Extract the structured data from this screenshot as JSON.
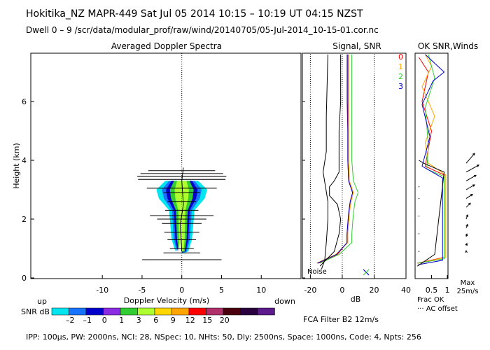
{
  "header": {
    "line1": "Hokitika_NZ  MAPR-449  Sat Jul 05 2014 10:15 – 10:19 UT 04:15 NZST",
    "line2": "Dwell  0 –  9   /scr/data/modular_prof/raw/wind/20140705/05-Jul-2014_10-15-01.cor.nc"
  },
  "footer": {
    "params": "IPP: 100µs,  PW: 2000ns,  NCI: 28,  NSpec: 10, NHts: 50,  Dly: 2500ns,  Space: 1000ns,  Code: 4,  Npts: 256",
    "filter": "FCA Filter B2 12m/s"
  },
  "colors": {
    "snr_scale": [
      "#00e5ee",
      "#1874ff",
      "#0000cd",
      "#8b2be2",
      "#32cd32",
      "#adff2f",
      "#ffd700",
      "#ffa500",
      "#ff0000",
      "#b0306a",
      "#4b0010",
      "#2b003f",
      "#5c1a8a"
    ],
    "line0": "#ff0000",
    "line1": "#ffa500",
    "line2": "#32cd32",
    "line3": "#0000cd"
  },
  "chart_data": [
    {
      "type": "heatmap",
      "title": "Averaged Doppler Spectra",
      "xlabel": "Doppler Velocity (m/s)",
      "ylabel": "Height (km)",
      "xlim": [
        -19,
        15
      ],
      "ylim": [
        0,
        7.7
      ],
      "x_ticks": [
        -10,
        -5,
        0,
        5,
        10
      ],
      "y_ticks": [
        0,
        2,
        4,
        6
      ],
      "left_note": "up",
      "right_note": "down",
      "spectrum_widths": [
        {
          "h": 0.62,
          "x1": -5,
          "x2": 5
        },
        {
          "h": 0.85,
          "x1": -2.3,
          "x2": 2.3
        },
        {
          "h": 1.0,
          "x1": -1.5,
          "x2": 1.5
        },
        {
          "h": 1.3,
          "x1": -1.8,
          "x2": 1.8
        },
        {
          "h": 1.55,
          "x1": -2.2,
          "x2": 2.2
        },
        {
          "h": 1.85,
          "x1": -2.5,
          "x2": 2.5
        },
        {
          "h": 2.0,
          "x1": -3.1,
          "x2": 3.1
        },
        {
          "h": 2.12,
          "x1": -4,
          "x2": 4
        },
        {
          "h": 2.3,
          "x1": -2.1,
          "x2": 2.1
        },
        {
          "h": 2.6,
          "x1": -1.8,
          "x2": 1.8
        },
        {
          "h": 2.9,
          "x1": -2.3,
          "x2": 2.3
        },
        {
          "h": 3.05,
          "x1": -4.4,
          "x2": 4.4
        },
        {
          "h": 3.35,
          "x1": -5.5,
          "x2": 5.5
        },
        {
          "h": 3.45,
          "x1": -5.6,
          "x2": 5.6
        },
        {
          "h": 3.55,
          "x1": -5.2,
          "x2": 5.2
        },
        {
          "h": 3.65,
          "x1": -4.2,
          "x2": 4.2
        }
      ],
      "core_profile": [
        {
          "h": 0.9,
          "half_width": 0.5
        },
        {
          "h": 1.3,
          "half_width": 0.8
        },
        {
          "h": 1.8,
          "half_width": 0.9
        },
        {
          "h": 2.3,
          "half_width": 1.0
        },
        {
          "h": 2.7,
          "half_width": 1.8
        },
        {
          "h": 3.0,
          "half_width": 2.0
        },
        {
          "h": 3.3,
          "half_width": 1.3
        }
      ],
      "mean_velocity": [
        {
          "h": 0.9,
          "v": 0.0
        },
        {
          "h": 1.8,
          "v": -0.2
        },
        {
          "h": 2.5,
          "v": 0.2
        },
        {
          "h": 3.3,
          "v": 0.0
        },
        {
          "h": 3.75,
          "v": 0.2
        }
      ]
    },
    {
      "type": "line",
      "title": "Signal, SNR",
      "xlabel": "dB",
      "xlim": [
        -25,
        40
      ],
      "ylim": [
        0,
        7.7
      ],
      "x_ticks": [
        -20,
        0,
        20,
        40
      ],
      "noise_label": "Noise",
      "series": [
        {
          "name": "0",
          "points": [
            [
              -15,
              0.5
            ],
            [
              -3,
              0.8
            ],
            [
              3,
              1.2
            ],
            [
              3,
              1.5
            ],
            [
              4,
              2.2
            ],
            [
              5,
              2.6
            ],
            [
              6.5,
              2.9
            ],
            [
              4,
              3.3
            ],
            [
              3.5,
              4.0
            ],
            [
              3.5,
              5.0
            ],
            [
              3,
              6.0
            ],
            [
              3,
              7.6
            ]
          ]
        },
        {
          "name": "1",
          "points": [
            [
              -16,
              0.5
            ],
            [
              -4,
              0.8
            ],
            [
              3.5,
              1.2
            ],
            [
              3.5,
              1.5
            ],
            [
              4.5,
              2.2
            ],
            [
              5.5,
              2.6
            ],
            [
              7,
              2.9
            ],
            [
              4.5,
              3.3
            ],
            [
              4,
              4.0
            ],
            [
              4,
              5.0
            ],
            [
              4,
              6.0
            ],
            [
              4,
              7.6
            ]
          ]
        },
        {
          "name": "2",
          "points": [
            [
              -14,
              0.5
            ],
            [
              -2,
              0.8
            ],
            [
              6,
              1.2
            ],
            [
              6,
              1.5
            ],
            [
              7,
              2.2
            ],
            [
              8,
              2.6
            ],
            [
              10,
              2.9
            ],
            [
              7,
              3.3
            ],
            [
              6,
              4.0
            ],
            [
              6,
              5.0
            ],
            [
              6,
              6.0
            ],
            [
              6,
              7.6
            ]
          ]
        },
        {
          "name": "3",
          "points": [
            [
              -15.5,
              0.5
            ],
            [
              -3.5,
              0.8
            ],
            [
              3,
              1.2
            ],
            [
              3,
              1.5
            ],
            [
              4,
              2.2
            ],
            [
              5,
              2.6
            ],
            [
              6.5,
              2.9
            ],
            [
              4,
              3.3
            ],
            [
              3.5,
              4.0
            ],
            [
              3.5,
              5.0
            ],
            [
              3.5,
              6.0
            ],
            [
              3.5,
              7.6
            ]
          ]
        },
        {
          "name": "",
          "points": [
            [
              -14,
              0.4
            ],
            [
              -5,
              0.9
            ],
            [
              -2,
              1.5
            ],
            [
              -1,
              2.0
            ],
            [
              -3,
              2.5
            ],
            [
              -8,
              2.8
            ],
            [
              -8,
              3.1
            ],
            [
              -5,
              3.3
            ],
            [
              -2,
              3.6
            ],
            [
              -2,
              4.0
            ],
            [
              -2,
              5.0
            ],
            [
              -1,
              6.0
            ],
            [
              -1,
              7.0
            ],
            [
              -1,
              7.6
            ]
          ]
        },
        {
          "name": "",
          "points": [
            [
              -13,
              0.3
            ],
            [
              -11,
              0.6
            ],
            [
              -10,
              1.2
            ],
            [
              -9,
              2.0
            ],
            [
              -9,
              2.6
            ],
            [
              -12,
              3.6
            ],
            [
              -10,
              4.3
            ],
            [
              -10,
              5.5
            ],
            [
              -9,
              7.6
            ]
          ]
        }
      ],
      "reference_lines_db": [
        -20,
        0,
        20
      ],
      "marker_db": 15
    },
    {
      "type": "line",
      "title": "OK SNR,Winds",
      "xlabel": "Frac OK",
      "x_ticks": [
        "0.5",
        "1"
      ],
      "legend": [
        "0",
        "1",
        "2",
        "3"
      ],
      "xlim": [
        0,
        1
      ],
      "ylim": [
        0,
        7.7
      ],
      "offset_label": "··· AC offset",
      "max_label": "Max",
      "max_value": "25m/s",
      "series": [
        {
          "name": "0",
          "points": [
            [
              0.05,
              0.5
            ],
            [
              0.9,
              0.7
            ],
            [
              0.9,
              3.5
            ],
            [
              0.3,
              3.8
            ],
            [
              0.5,
              5.0
            ],
            [
              0.2,
              6.0
            ],
            [
              0.4,
              7.0
            ],
            [
              0.1,
              7.5
            ]
          ]
        },
        {
          "name": "1",
          "points": [
            [
              0.1,
              0.5
            ],
            [
              0.95,
              0.7
            ],
            [
              0.95,
              3.5
            ],
            [
              0.4,
              3.9
            ],
            [
              0.3,
              4.6
            ],
            [
              0.6,
              5.5
            ],
            [
              0.2,
              6.5
            ],
            [
              0.5,
              7.2
            ],
            [
              0.3,
              7.6
            ]
          ]
        },
        {
          "name": "2",
          "points": [
            [
              0.06,
              0.5
            ],
            [
              0.9,
              0.65
            ],
            [
              0.9,
              3.45
            ],
            [
              0.35,
              3.7
            ],
            [
              0.4,
              4.5
            ],
            [
              0.3,
              5.8
            ],
            [
              0.6,
              6.8
            ],
            [
              0.4,
              7.6
            ]
          ]
        },
        {
          "name": "3",
          "points": [
            [
              0.08,
              0.45
            ],
            [
              0.85,
              0.6
            ],
            [
              0.85,
              3.4
            ],
            [
              0.2,
              3.8
            ],
            [
              0.45,
              4.8
            ],
            [
              0.2,
              5.9
            ],
            [
              0.55,
              6.7
            ],
            [
              0.9,
              7.0
            ],
            [
              0.3,
              7.6
            ]
          ]
        },
        {
          "name": "",
          "points": [
            [
              0.05,
              0.4
            ],
            [
              0.6,
              0.8
            ],
            [
              0.9,
              3.6
            ],
            [
              0.25,
              3.9
            ],
            [
              0.1,
              4.0
            ]
          ]
        }
      ],
      "winds": [
        {
          "h": 0.9,
          "dx": 0,
          "dy": 1
        },
        {
          "h": 1.1,
          "dx": 1,
          "dy": 3
        },
        {
          "h": 1.4,
          "dx": 1,
          "dy": 4
        },
        {
          "h": 1.7,
          "dx": 2,
          "dy": 5
        },
        {
          "h": 2.0,
          "dx": 2,
          "dy": 6
        },
        {
          "h": 2.4,
          "dx": 6,
          "dy": 6
        },
        {
          "h": 2.7,
          "dx": 9,
          "dy": 6
        },
        {
          "h": 3.0,
          "dx": 12,
          "dy": 7
        },
        {
          "h": 3.3,
          "dx": 14,
          "dy": 8
        },
        {
          "h": 3.6,
          "dx": 18,
          "dy": 10
        },
        {
          "h": 3.9,
          "dx": 12,
          "dy": 14
        }
      ]
    }
  ],
  "snr_bar": {
    "label": "SNR dB",
    "ticks": [
      "–2",
      "–1",
      "0",
      "1",
      "3",
      "6",
      "9",
      "12",
      "15",
      "20"
    ]
  }
}
